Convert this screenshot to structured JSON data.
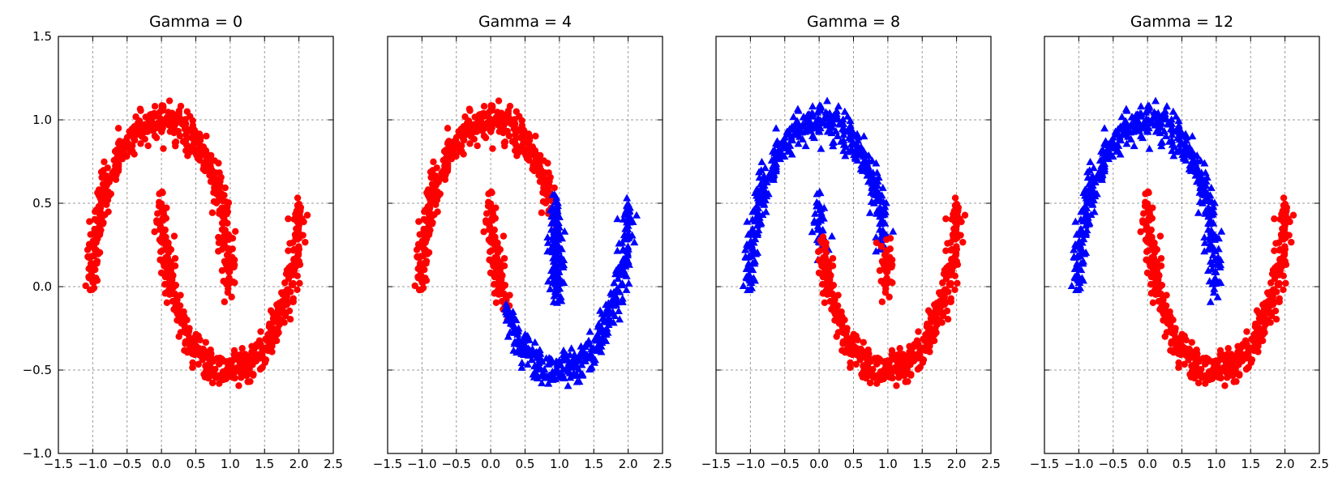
{
  "chart_data": [
    {
      "type": "scatter",
      "title": "Gamma = 0",
      "xlim": [
        -1.5,
        2.5
      ],
      "ylim": [
        -1.0,
        1.5
      ],
      "xticks": [
        "−1.5",
        "−1.0",
        "−0.5",
        "0.0",
        "0.5",
        "1.0",
        "1.5",
        "2.0",
        "2.5"
      ],
      "xtick_values": [
        -1.5,
        -1.0,
        -0.5,
        0.0,
        0.5,
        1.0,
        1.5,
        2.0,
        2.5
      ],
      "yticks": [
        "1.5",
        "1.0",
        "0.5",
        "0.0",
        "−0.5",
        "−1.0"
      ],
      "ytick_values": [
        1.5,
        1.0,
        0.5,
        0.0,
        -0.5,
        -1.0
      ],
      "grid": true,
      "classes": {
        "upper_arc": {
          "color": "#ff0000",
          "marker": "circle"
        },
        "lower_arc": {
          "color": "#ff0000",
          "marker": "circle"
        }
      },
      "segments": [
        {
          "arc": "upper",
          "t_range": [
            0.0,
            1.0
          ],
          "marker": "circle",
          "color": "#ff0000"
        },
        {
          "arc": "lower",
          "t_range": [
            0.0,
            1.0
          ],
          "marker": "circle",
          "color": "#ff0000"
        }
      ]
    },
    {
      "type": "scatter",
      "title": "Gamma = 4",
      "xlim": [
        -1.5,
        2.5
      ],
      "ylim": [
        -1.0,
        1.5
      ],
      "xticks": [
        "−1.5",
        "−1.0",
        "−0.5",
        "0.0",
        "0.5",
        "1.0",
        "1.5",
        "2.0",
        "2.5"
      ],
      "xtick_values": [
        -1.5,
        -1.0,
        -0.5,
        0.0,
        0.5,
        1.0,
        1.5,
        2.0,
        2.5
      ],
      "yticks": [],
      "ytick_values": [
        1.5,
        1.0,
        0.5,
        0.0,
        -0.5,
        -1.0
      ],
      "grid": true,
      "segments": [
        {
          "arc": "upper",
          "t_range": [
            0.0,
            0.85
          ],
          "marker": "circle",
          "color": "#ff0000"
        },
        {
          "arc": "upper",
          "t_range": [
            0.85,
            1.0
          ],
          "marker": "triangle",
          "color": "#0000ff"
        },
        {
          "arc": "lower",
          "t_range": [
            0.0,
            0.22
          ],
          "marker": "circle",
          "color": "#ff0000"
        },
        {
          "arc": "lower",
          "t_range": [
            0.22,
            1.0
          ],
          "marker": "triangle",
          "color": "#0000ff"
        },
        {
          "arc": "inner_blue",
          "t_range": [
            0.0,
            1.0
          ],
          "marker": "triangle",
          "color": "#0000ff"
        }
      ]
    },
    {
      "type": "scatter",
      "title": "Gamma = 8",
      "xlim": [
        -1.5,
        2.5
      ],
      "ylim": [
        -1.0,
        1.5
      ],
      "xticks": [
        "−1.5",
        "−1.0",
        "−0.5",
        "0.0",
        "0.5",
        "1.0",
        "1.5",
        "2.0",
        "2.5"
      ],
      "xtick_values": [
        -1.5,
        -1.0,
        -0.5,
        0.0,
        0.5,
        1.0,
        1.5,
        2.0,
        2.5
      ],
      "yticks": [],
      "ytick_values": [
        1.5,
        1.0,
        0.5,
        0.0,
        -0.5,
        -1.0
      ],
      "grid": true,
      "segments": [
        {
          "arc": "upper",
          "t_range": [
            0.0,
            0.92
          ],
          "marker": "triangle",
          "color": "#0000ff"
        },
        {
          "arc": "upper",
          "t_range": [
            0.92,
            1.0
          ],
          "marker": "circle",
          "color": "#ff0000"
        },
        {
          "arc": "lower",
          "t_range": [
            0.0,
            0.08
          ],
          "marker": "triangle",
          "color": "#0000ff"
        },
        {
          "arc": "lower",
          "t_range": [
            0.08,
            1.0
          ],
          "marker": "circle",
          "color": "#ff0000"
        }
      ]
    },
    {
      "type": "scatter",
      "title": "Gamma = 12",
      "xlim": [
        -1.5,
        2.5
      ],
      "ylim": [
        -1.0,
        1.5
      ],
      "xticks": [
        "−1.5",
        "−1.0",
        "−0.5",
        "0.0",
        "0.5",
        "1.0",
        "1.5",
        "2.0",
        "2.5"
      ],
      "xtick_values": [
        -1.5,
        -1.0,
        -0.5,
        0.0,
        0.5,
        1.0,
        1.5,
        2.0,
        2.5
      ],
      "yticks": [],
      "ytick_values": [
        1.5,
        1.0,
        0.5,
        0.0,
        -0.5,
        -1.0
      ],
      "grid": true,
      "segments": [
        {
          "arc": "upper",
          "t_range": [
            0.0,
            1.0
          ],
          "marker": "triangle",
          "color": "#0000ff"
        },
        {
          "arc": "lower",
          "t_range": [
            0.0,
            1.0
          ],
          "marker": "circle",
          "color": "#ff0000"
        }
      ]
    }
  ],
  "dataset": {
    "shape": "two interleaving half-moons",
    "upper_arc": {
      "center": [
        0,
        0
      ],
      "radius": 1,
      "angle_deg": [
        180,
        0
      ]
    },
    "lower_arc": {
      "center": [
        1,
        0.5
      ],
      "radius": 1,
      "angle_deg": [
        180,
        360
      ]
    },
    "noise": 0.05,
    "points_per_arc": 500
  }
}
